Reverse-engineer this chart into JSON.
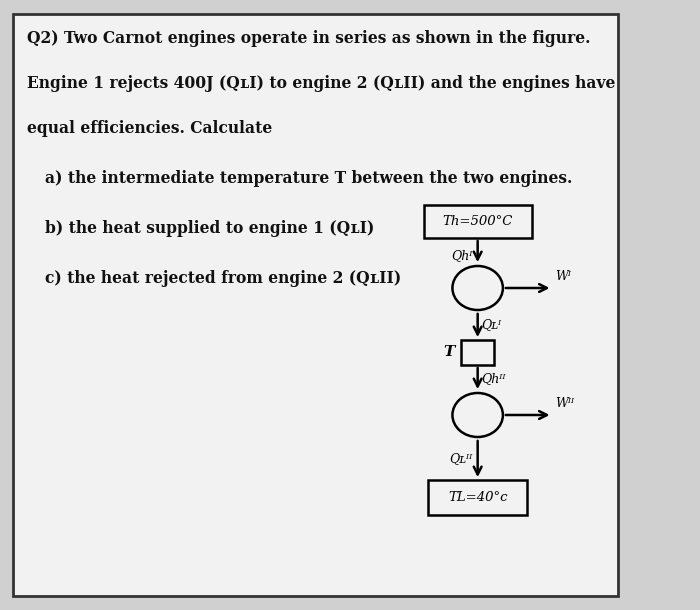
{
  "bg_outer": "#d0d0d0",
  "bg_inner": "#f0f0f0",
  "border_color": "#333333",
  "text_color": "#111111",
  "line1": "Q2) Two Carnot engines operate in series as shown in the figure.",
  "line2": "Engine 1 rejects 400J (QʟI) to engine 2 (QʟII) and the engines have",
  "line3": "equal efficiencies. Calculate",
  "item_a": "a) the intermediate temperature T between the two engines.",
  "item_b": "b) the heat supplied to engine 1 (QʟI)",
  "item_c": "c) the heat rejected from engine 2 (QʟII)",
  "top_box_label": "Th=500°C",
  "bot_box_label": "TL=40°c",
  "QhI": "Qhᴵ",
  "QLI": "Qʟᴵ",
  "QhII": "Qhᴵᴵ",
  "QLII": "Qʟᴵᴵ",
  "WI": "Wᴵ",
  "WII": "Wᴵᴵ",
  "T_label": "T"
}
